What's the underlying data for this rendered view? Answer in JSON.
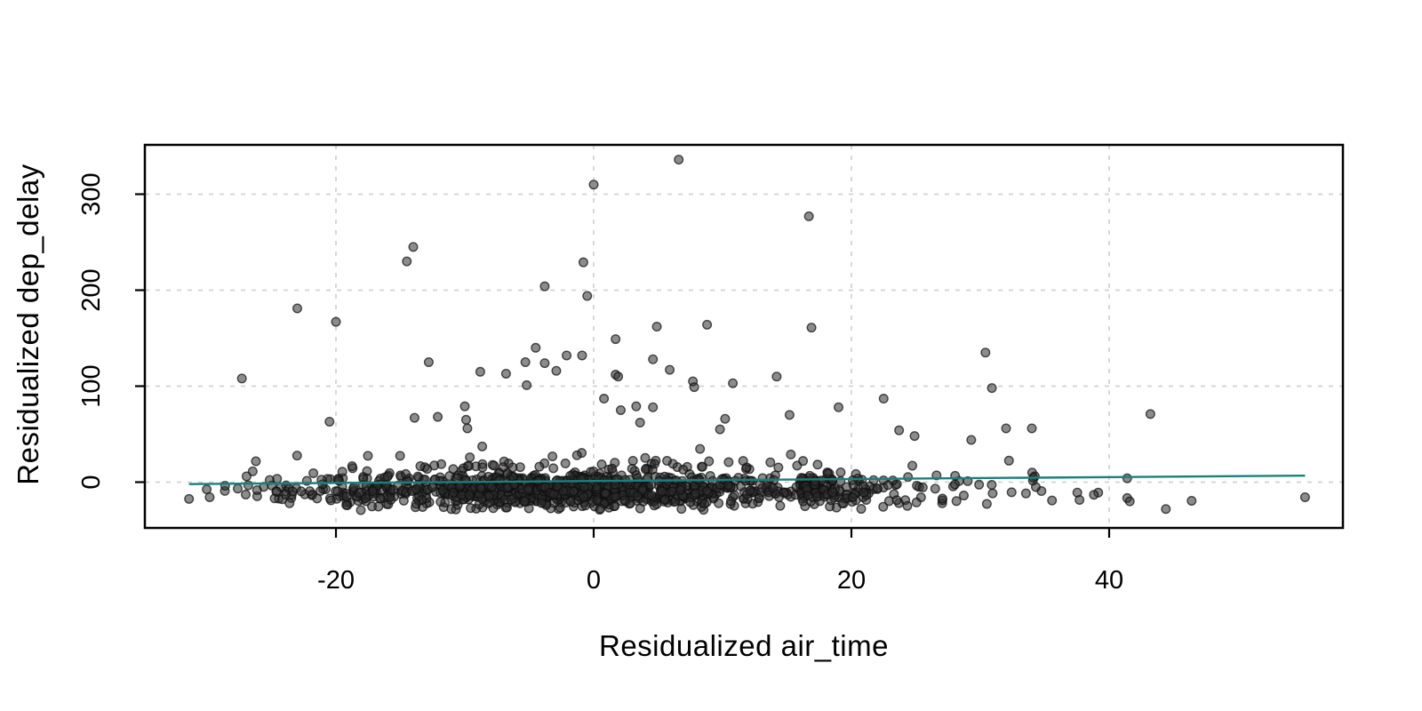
{
  "figure": {
    "background": "#ffffff",
    "title": ""
  },
  "chart_data": {
    "type": "scatter",
    "title": "",
    "xlabel": "Residualized air_time",
    "ylabel": "Residualized dep_delay",
    "xlim": [
      -34.9,
      58.3
    ],
    "ylim": [
      -48,
      352
    ],
    "x_ticks": [
      -20,
      0,
      20,
      40
    ],
    "y_ticks": [
      0,
      100,
      200,
      300
    ],
    "grid": true,
    "grid_color": "#d2d2d2",
    "box_color": "#000000",
    "legend": false,
    "point_style": {
      "radius": 4.8,
      "fill": "rgba(45,45,45,0.55)",
      "stroke": "rgba(15,15,15,0.72)",
      "stroke_width": 1.4
    },
    "regression_line": {
      "color": "#1b7f7c",
      "width": 2.4,
      "x1": -31.4,
      "y1": -2.0,
      "x2": 55.2,
      "y2": 6.8
    },
    "outlier_points": [
      [
        6.6,
        336
      ],
      [
        0,
        310
      ],
      [
        16.7,
        277
      ],
      [
        -14,
        245
      ],
      [
        -14.5,
        230
      ],
      [
        -0.8,
        229
      ],
      [
        -3.8,
        204
      ],
      [
        -0.5,
        194
      ],
      [
        -23,
        181
      ],
      [
        -20,
        167
      ],
      [
        8.8,
        164
      ],
      [
        4.9,
        162
      ],
      [
        16.9,
        161
      ],
      [
        1.7,
        149
      ],
      [
        -4.5,
        140
      ],
      [
        30.4,
        135
      ],
      [
        -2.1,
        132
      ],
      [
        -0.9,
        132
      ],
      [
        4.6,
        128
      ],
      [
        -12.8,
        125
      ],
      [
        -5.3,
        125
      ],
      [
        -3.8,
        124
      ],
      [
        5.9,
        117
      ],
      [
        -2.9,
        116
      ],
      [
        -8.8,
        115
      ],
      [
        -6.8,
        113
      ],
      [
        1.7,
        112
      ],
      [
        1.9,
        110
      ],
      [
        14.2,
        110
      ],
      [
        -27.3,
        108
      ],
      [
        7.7,
        105
      ],
      [
        10.8,
        103
      ],
      [
        -5.2,
        101
      ],
      [
        7.8,
        99
      ],
      [
        30.9,
        98
      ],
      [
        22.5,
        87
      ],
      [
        0.8,
        87
      ],
      [
        -10,
        79
      ],
      [
        19,
        78
      ],
      [
        4.6,
        78
      ],
      [
        3.3,
        79
      ],
      [
        2.1,
        75
      ],
      [
        43.2,
        71
      ],
      [
        15.2,
        70
      ],
      [
        -12.1,
        68
      ],
      [
        -13.9,
        67
      ],
      [
        10.2,
        66
      ],
      [
        -9.9,
        65
      ],
      [
        -20.5,
        63
      ],
      [
        3.6,
        62
      ],
      [
        -9.8,
        56
      ],
      [
        32,
        56
      ],
      [
        34,
        56
      ],
      [
        9.8,
        55
      ],
      [
        23.7,
        54
      ],
      [
        24.9,
        48
      ],
      [
        29.3,
        44
      ],
      [
        41.4,
        4
      ],
      [
        -31.4,
        -17.5
      ],
      [
        -29.8,
        -15.7
      ],
      [
        -28.6,
        -3.7
      ],
      [
        -27,
        -12.9
      ],
      [
        -24.6,
        -10
      ],
      [
        -23.9,
        -13
      ],
      [
        -23.6,
        -22
      ],
      [
        37.7,
        -18.5
      ],
      [
        41.4,
        -16.6
      ],
      [
        41.6,
        -20
      ],
      [
        46.4,
        -19.4
      ],
      [
        44.4,
        -28
      ],
      [
        55.2,
        -15.7
      ]
    ],
    "dense_cloud": {
      "description": "Approximately 1200 heavily-overplotted points forming a near-black band between y=-31 and y=+12, densest for x in [-20,18]; individual values not resolvable in source image, reproduced procedurally.",
      "seed": 42,
      "n_core": 1150,
      "n_mid": 70,
      "y_floor": -31,
      "y_fringe_max": 14
    }
  }
}
